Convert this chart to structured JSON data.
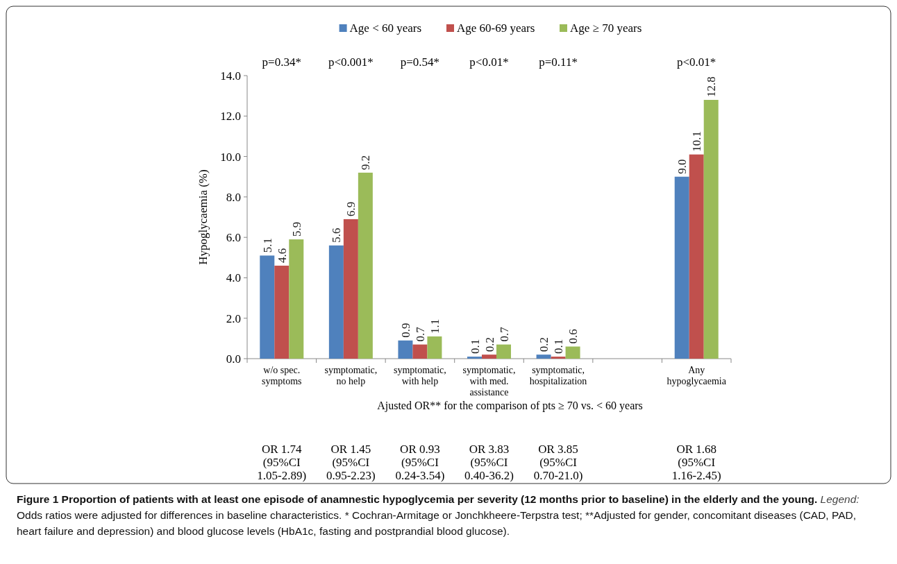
{
  "chart_data": {
    "type": "bar",
    "ylabel": "Hypoglycaemia (%)",
    "categories": [
      "w/o spec. symptoms",
      "symptomatic, no help",
      "symptomatic, with help",
      "symptomatic, with med. assistance",
      "symptomatic, hospitalization",
      null,
      "Any hypoglycaemia"
    ],
    "series": [
      {
        "name": "Age < 60 years",
        "color": "#4f81bd",
        "values": [
          5.1,
          5.6,
          0.9,
          0.1,
          0.2,
          null,
          9.0
        ],
        "value_labels": [
          "5.1",
          "5.6",
          "0.9",
          "0.1",
          "0.2",
          null,
          "9.0"
        ]
      },
      {
        "name": "Age 60-69 years",
        "color": "#c0504d",
        "values": [
          4.6,
          6.9,
          0.7,
          0.2,
          0.1,
          null,
          10.1
        ],
        "value_labels": [
          "4.6",
          "6.9",
          "0.7",
          "0.2",
          "0.1",
          null,
          "10.1"
        ]
      },
      {
        "name": "Age ≥ 70 years",
        "color": "#9bbb59",
        "values": [
          5.9,
          9.2,
          1.1,
          0.7,
          0.6,
          null,
          12.8
        ],
        "value_labels": [
          "5.9",
          "9.2",
          "1.1",
          "0.7",
          "0.6",
          null,
          "12.8"
        ]
      }
    ],
    "ylim": [
      0,
      14
    ],
    "yticks": [
      {
        "value": 0,
        "label": "0.0"
      },
      {
        "value": 2,
        "label": "2.0"
      },
      {
        "value": 4,
        "label": "4.0"
      },
      {
        "value": 6,
        "label": "6.0"
      },
      {
        "value": 8,
        "label": "8.0"
      },
      {
        "value": 10,
        "label": "10.0"
      },
      {
        "value": 12,
        "label": "12.0"
      },
      {
        "value": 14,
        "label": "14.0"
      }
    ],
    "grid": false,
    "legend": "top",
    "annotations": [
      "p=0.34*",
      "p<0.001*",
      "p=0.54*",
      "p<0.01*",
      "p=0.11*",
      "p<0.01*",
      "Ajusted OR** for the comparison of pts ≥ 70 vs. < 60 years",
      "OR 1.74 (95%CI 1.05-2.89)",
      "OR 1.45 (95%CI 0.95-2.23)",
      "OR 0.93 (95%CI 0.24-3.54)",
      "OR 3.83 (95%CI 0.40-36.2)",
      "OR 3.85 (95%CI 0.70-21.0)",
      "OR 1.68 (95%CI 1.16-2.45)",
      "Figure 1 Proportion of patients with at least one episode of anamnestic hypoglycemia per severity (12 months prior to baseline) in the elderly and the young.",
      "Legend:",
      "Odds ratios were adjusted for differences in baseline characteristics. * Cochran-Armitage or Jonchkheere-Terpstra test; **Adjusted for gender, concomitant diseases (CAD, PAD, heart failure and depression) and blood glucose levels (HbA1c, fasting and postprandial blood glucose)."
    ]
  }
}
